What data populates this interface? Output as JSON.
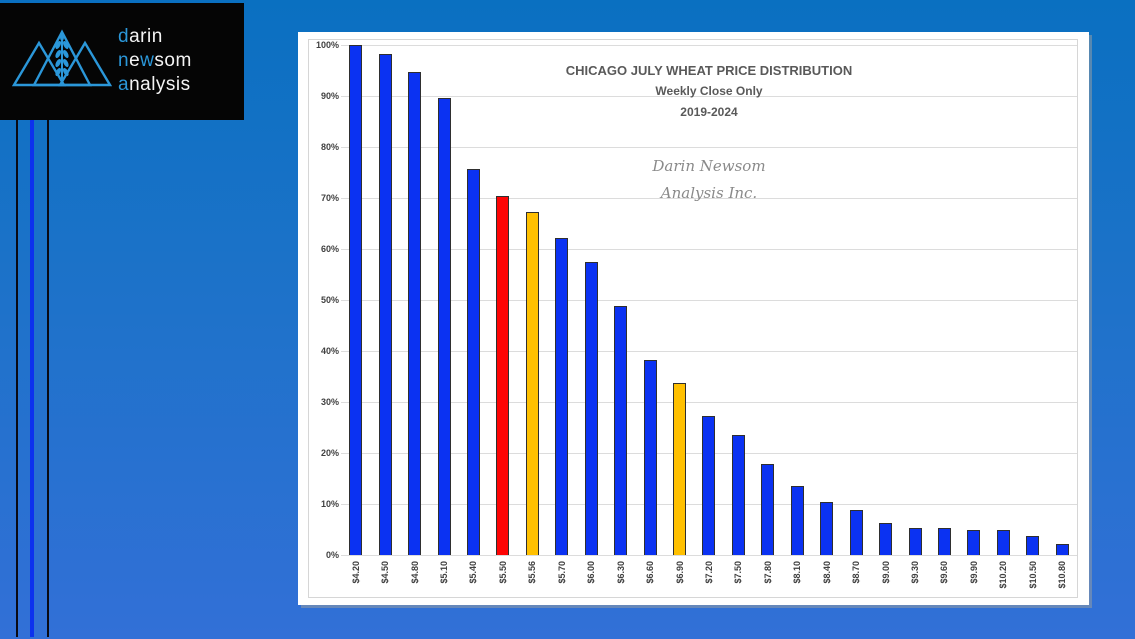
{
  "logo": {
    "accent_color": "#2b97d9",
    "text_color": "#f4f4f4",
    "lines": [
      {
        "segments": [
          {
            "text": "d",
            "accent": true
          },
          {
            "text": "arin",
            "accent": false
          }
        ]
      },
      {
        "segments": [
          {
            "text": "n",
            "accent": true
          },
          {
            "text": "e",
            "accent": false
          },
          {
            "text": "w",
            "accent": true
          },
          {
            "text": "som",
            "accent": false
          }
        ]
      },
      {
        "segments": [
          {
            "text": "a",
            "accent": true
          },
          {
            "text": "nalysis",
            "accent": false
          }
        ]
      }
    ],
    "mark": "three-triangles-with-wheat-ear-icon"
  },
  "theme": {
    "page_bg_top": "#0a70c1",
    "page_bg_bottom": "#3270d7",
    "stripe_black": "#0a0a14",
    "stripe_blue": "#0c31ee",
    "panel_bg": "#ffffff",
    "grid_color": "#dcdcdc",
    "axis_text": "#404040",
    "title_color": "#595959",
    "watermark_color": "#8a8a8a",
    "logo_accent": "#2b97d9",
    "logo_text": "#f4f4f4",
    "bar_blue": "#0b32f2",
    "bar_red": "#fe0505",
    "bar_orange": "#ffc000"
  },
  "chart_data": {
    "type": "bar",
    "title": "CHICAGO JULY WHEAT PRICE DISTRIBUTION",
    "subtitle1": "Weekly Close Only",
    "subtitle2": "2019-2024",
    "watermark_line1": "Darin Newsom",
    "watermark_line2": "Analysis Inc.",
    "xlabel": "",
    "ylabel": "",
    "ylim": [
      0,
      100
    ],
    "y_tick_step": 10,
    "y_tick_format": "percent",
    "grid": true,
    "legend": false,
    "categories": [
      "$4.20",
      "$4.50",
      "$4.80",
      "$5.10",
      "$5.40",
      "$5.50",
      "$5.56",
      "$5.70",
      "$6.00",
      "$6.30",
      "$6.60",
      "$6.90",
      "$7.20",
      "$7.50",
      "$7.80",
      "$8.10",
      "$8.40",
      "$8.70",
      "$9.00",
      "$9.30",
      "$9.60",
      "$9.90",
      "$10.20",
      "$10.50",
      "$10.80"
    ],
    "values": [
      100,
      98.2,
      94.8,
      89.6,
      75.7,
      70.3,
      67.3,
      62.1,
      57.4,
      48.8,
      38.2,
      33.8,
      27.3,
      23.5,
      17.9,
      13.6,
      10.4,
      8.8,
      6.3,
      5.3,
      5.3,
      4.9,
      4.9,
      3.8,
      2.1
    ],
    "colors": [
      "#0b32f2",
      "#0b32f2",
      "#0b32f2",
      "#0b32f2",
      "#0b32f2",
      "#fe0505",
      "#ffc000",
      "#0b32f2",
      "#0b32f2",
      "#0b32f2",
      "#0b32f2",
      "#ffc000",
      "#0b32f2",
      "#0b32f2",
      "#0b32f2",
      "#0b32f2",
      "#0b32f2",
      "#0b32f2",
      "#0b32f2",
      "#0b32f2",
      "#0b32f2",
      "#0b32f2",
      "#0b32f2",
      "#0b32f2",
      "#0b32f2"
    ]
  }
}
